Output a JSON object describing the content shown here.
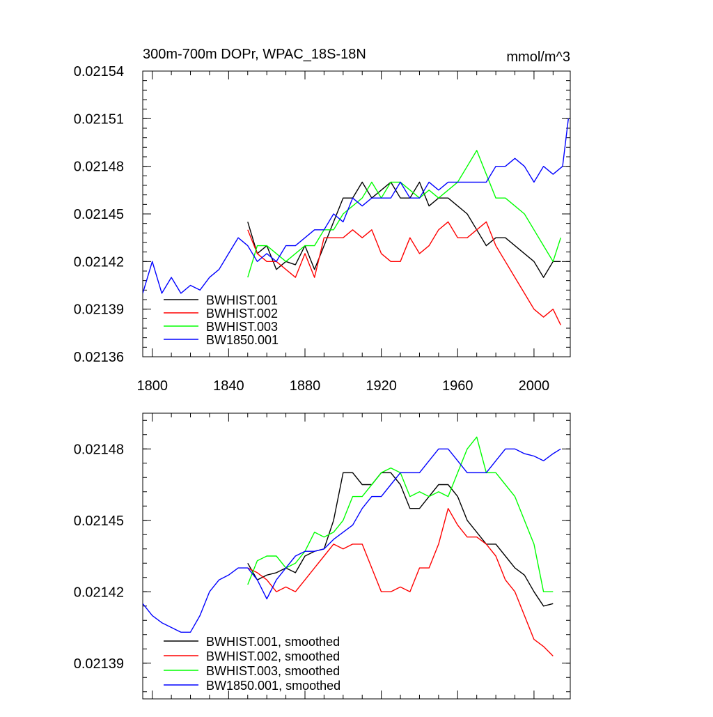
{
  "chart_data": [
    {
      "type": "line",
      "title": "300m-700m DOPr, WPAC_18S-18N",
      "units_label": "mmol/m^3",
      "xlim": [
        1795,
        2019
      ],
      "ylim": [
        0.02136,
        0.02154
      ],
      "x_ticks": [
        1800,
        1840,
        1880,
        1920,
        1960,
        2000
      ],
      "y_ticks": [
        0.02136,
        0.02139,
        0.02142,
        0.02145,
        0.02148,
        0.02151,
        0.02154
      ],
      "y_tick_labels": [
        "0.02136",
        "0.02139",
        "0.02142",
        "0.02145",
        "0.02148",
        "0.02151",
        "0.02154"
      ],
      "legend_position": "bottom-left",
      "grid": false,
      "series": [
        {
          "name": "BWHIST.001",
          "color": "#000000",
          "x": [
            1850,
            1855,
            1860,
            1865,
            1870,
            1875,
            1880,
            1885,
            1890,
            1895,
            1900,
            1905,
            1910,
            1915,
            1920,
            1925,
            1930,
            1935,
            1940,
            1945,
            1950,
            1955,
            1960,
            1965,
            1970,
            1975,
            1980,
            1985,
            1990,
            1995,
            2000,
            2005,
            2010,
            2014
          ],
          "y": [
            0.021445,
            0.021425,
            0.02143,
            0.021415,
            0.02142,
            0.021418,
            0.02143,
            0.021415,
            0.02143,
            0.021445,
            0.02146,
            0.02146,
            0.02147,
            0.02146,
            0.021465,
            0.02147,
            0.02146,
            0.02146,
            0.02147,
            0.021455,
            0.02146,
            0.02146,
            0.021455,
            0.02145,
            0.02144,
            0.02143,
            0.021435,
            0.021435,
            0.02143,
            0.021425,
            0.02142,
            0.02141,
            0.02142,
            0.02142
          ]
        },
        {
          "name": "BWHIST.002",
          "color": "#ff0000",
          "x": [
            1850,
            1855,
            1860,
            1865,
            1870,
            1875,
            1880,
            1885,
            1890,
            1895,
            1900,
            1905,
            1910,
            1915,
            1920,
            1925,
            1930,
            1935,
            1940,
            1945,
            1950,
            1955,
            1960,
            1965,
            1970,
            1975,
            1980,
            1985,
            1990,
            1995,
            2000,
            2005,
            2010,
            2014
          ],
          "y": [
            0.02144,
            0.021425,
            0.02142,
            0.02142,
            0.021415,
            0.02141,
            0.021425,
            0.02141,
            0.021435,
            0.021435,
            0.021435,
            0.02144,
            0.021435,
            0.02144,
            0.021425,
            0.02142,
            0.02142,
            0.021435,
            0.021425,
            0.02143,
            0.02144,
            0.021445,
            0.021435,
            0.021435,
            0.02144,
            0.021445,
            0.02143,
            0.02142,
            0.02141,
            0.0214,
            0.02139,
            0.021385,
            0.02139,
            0.02138
          ]
        },
        {
          "name": "BWHIST.003",
          "color": "#00ff00",
          "x": [
            1850,
            1855,
            1860,
            1865,
            1870,
            1875,
            1880,
            1885,
            1890,
            1895,
            1900,
            1905,
            1910,
            1915,
            1920,
            1925,
            1930,
            1935,
            1940,
            1945,
            1950,
            1955,
            1960,
            1965,
            1970,
            1975,
            1980,
            1985,
            1990,
            1995,
            2000,
            2005,
            2010,
            2014
          ],
          "y": [
            0.02141,
            0.02143,
            0.02143,
            0.021425,
            0.02142,
            0.021425,
            0.02143,
            0.02143,
            0.02144,
            0.02144,
            0.02145,
            0.021455,
            0.02146,
            0.02147,
            0.02146,
            0.02147,
            0.02147,
            0.021465,
            0.02146,
            0.021465,
            0.02146,
            0.021465,
            0.02147,
            0.02148,
            0.02149,
            0.021475,
            0.02146,
            0.02146,
            0.021455,
            0.02145,
            0.02144,
            0.02143,
            0.02142,
            0.021435
          ]
        },
        {
          "name": "BW1850.001",
          "color": "#0000ff",
          "x": [
            1795,
            1800,
            1805,
            1810,
            1815,
            1820,
            1825,
            1830,
            1835,
            1840,
            1845,
            1850,
            1855,
            1860,
            1865,
            1870,
            1875,
            1880,
            1885,
            1890,
            1895,
            1900,
            1905,
            1910,
            1915,
            1920,
            1925,
            1930,
            1935,
            1940,
            1945,
            1950,
            1955,
            1960,
            1965,
            1970,
            1975,
            1980,
            1985,
            1990,
            1995,
            2000,
            2005,
            2010,
            2015,
            2018
          ],
          "y": [
            0.0214,
            0.02142,
            0.0214,
            0.02141,
            0.0214,
            0.021405,
            0.021402,
            0.02141,
            0.021415,
            0.021425,
            0.021435,
            0.02143,
            0.02142,
            0.021425,
            0.02142,
            0.02143,
            0.02143,
            0.021435,
            0.02144,
            0.02144,
            0.02145,
            0.021445,
            0.02146,
            0.021455,
            0.02146,
            0.02146,
            0.02146,
            0.02147,
            0.02146,
            0.02146,
            0.02147,
            0.021465,
            0.02147,
            0.02147,
            0.02147,
            0.02147,
            0.02147,
            0.02148,
            0.02148,
            0.021485,
            0.02148,
            0.02147,
            0.02148,
            0.021475,
            0.02148,
            0.02151
          ]
        }
      ]
    },
    {
      "type": "line",
      "xlim": [
        1795,
        2019
      ],
      "ylim": [
        0.021375,
        0.021495
      ],
      "x_ticks": [
        1800,
        1840,
        1880,
        1920,
        1960,
        2000
      ],
      "y_ticks": [
        0.02139,
        0.02142,
        0.02145,
        0.02148
      ],
      "y_tick_labels": [
        "0.02139",
        "0.02142",
        "0.02145",
        "0.02148"
      ],
      "legend_position": "bottom-left",
      "grid": false,
      "series": [
        {
          "name": "BWHIST.001, smoothed",
          "color": "#000000",
          "x": [
            1850,
            1855,
            1860,
            1865,
            1870,
            1875,
            1880,
            1885,
            1890,
            1895,
            1900,
            1905,
            1910,
            1915,
            1920,
            1925,
            1930,
            1935,
            1940,
            1945,
            1950,
            1955,
            1960,
            1965,
            1970,
            1975,
            1980,
            1985,
            1990,
            1995,
            2000,
            2005,
            2010
          ],
          "y": [
            0.021432,
            0.021425,
            0.021427,
            0.021428,
            0.02143,
            0.021428,
            0.021435,
            0.021437,
            0.021438,
            0.02145,
            0.02147,
            0.02147,
            0.021465,
            0.021465,
            0.02147,
            0.02147,
            0.021465,
            0.021455,
            0.021455,
            0.02146,
            0.021465,
            0.021465,
            0.02146,
            0.02145,
            0.021445,
            0.02144,
            0.02144,
            0.021435,
            0.02143,
            0.021427,
            0.02142,
            0.021414,
            0.021415
          ]
        },
        {
          "name": "BWHIST.002, smoothed",
          "color": "#ff0000",
          "x": [
            1850,
            1855,
            1860,
            1865,
            1870,
            1875,
            1880,
            1885,
            1890,
            1895,
            1900,
            1905,
            1910,
            1915,
            1920,
            1925,
            1930,
            1935,
            1940,
            1945,
            1950,
            1955,
            1960,
            1965,
            1970,
            1975,
            1980,
            1985,
            1990,
            1995,
            2000,
            2005,
            2010
          ],
          "y": [
            0.02143,
            0.021428,
            0.021425,
            0.02142,
            0.021422,
            0.02142,
            0.021425,
            0.02143,
            0.021435,
            0.02144,
            0.021438,
            0.02144,
            0.02144,
            0.02143,
            0.02142,
            0.02142,
            0.021422,
            0.02142,
            0.02143,
            0.02143,
            0.02144,
            0.021455,
            0.021448,
            0.021443,
            0.021443,
            0.02144,
            0.021435,
            0.021425,
            0.02142,
            0.02141,
            0.0214,
            0.021397,
            0.021393
          ]
        },
        {
          "name": "BWHIST.003, smoothed",
          "color": "#00ff00",
          "x": [
            1850,
            1855,
            1860,
            1865,
            1870,
            1875,
            1880,
            1885,
            1890,
            1895,
            1900,
            1905,
            1910,
            1915,
            1920,
            1925,
            1930,
            1935,
            1940,
            1945,
            1950,
            1955,
            1960,
            1965,
            1970,
            1975,
            1980,
            1985,
            1990,
            1995,
            2000,
            2005,
            2010
          ],
          "y": [
            0.021423,
            0.021433,
            0.021435,
            0.021435,
            0.02143,
            0.021432,
            0.021437,
            0.021445,
            0.021443,
            0.021445,
            0.02145,
            0.02146,
            0.02146,
            0.021465,
            0.02147,
            0.021472,
            0.02147,
            0.02146,
            0.021462,
            0.02146,
            0.021462,
            0.02146,
            0.02147,
            0.02148,
            0.021485,
            0.02147,
            0.02147,
            0.021465,
            0.02146,
            0.02145,
            0.02144,
            0.02142,
            0.02142
          ]
        },
        {
          "name": "BW1850.001, smoothed",
          "color": "#0000ff",
          "x": [
            1795,
            1800,
            1805,
            1810,
            1815,
            1820,
            1825,
            1830,
            1835,
            1840,
            1845,
            1850,
            1855,
            1860,
            1865,
            1870,
            1875,
            1880,
            1885,
            1890,
            1895,
            1900,
            1905,
            1910,
            1915,
            1920,
            1925,
            1930,
            1935,
            1940,
            1945,
            1950,
            1955,
            1960,
            1965,
            1970,
            1975,
            1980,
            1985,
            1990,
            1995,
            2000,
            2005,
            2010,
            2014
          ],
          "y": [
            0.021415,
            0.02141,
            0.021407,
            0.021405,
            0.021403,
            0.021403,
            0.02141,
            0.02142,
            0.021425,
            0.021427,
            0.02143,
            0.02143,
            0.021425,
            0.021417,
            0.021425,
            0.02143,
            0.021435,
            0.021437,
            0.021437,
            0.021438,
            0.021442,
            0.021445,
            0.021448,
            0.021455,
            0.02146,
            0.02146,
            0.021465,
            0.02147,
            0.02147,
            0.02147,
            0.021475,
            0.02148,
            0.02148,
            0.021475,
            0.02147,
            0.02147,
            0.02147,
            0.021475,
            0.02148,
            0.02148,
            0.021478,
            0.021477,
            0.021475,
            0.021478,
            0.02148
          ]
        }
      ]
    }
  ]
}
